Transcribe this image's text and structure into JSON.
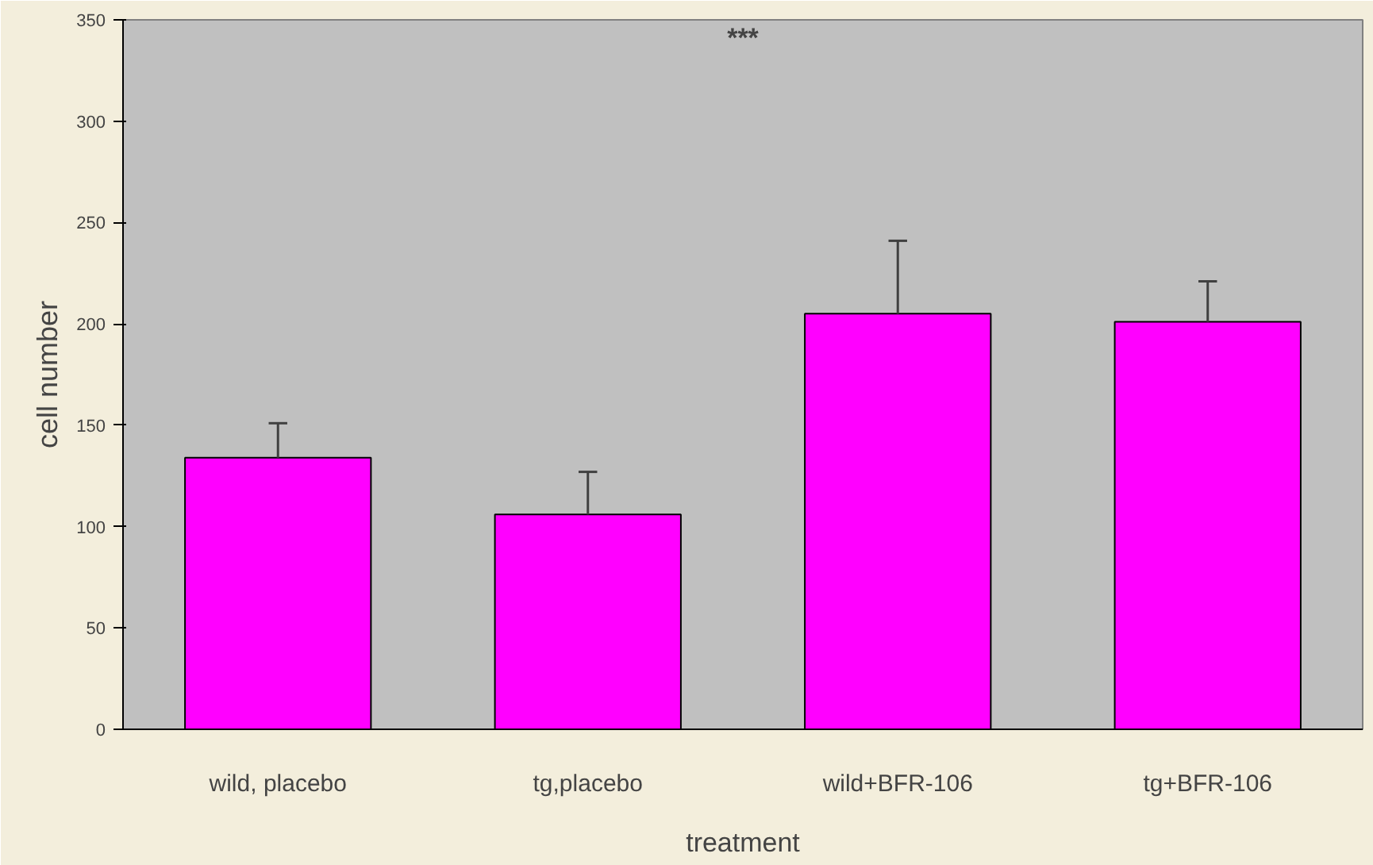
{
  "chart_data": {
    "type": "bar",
    "xlabel": "treatment",
    "ylabel": "cell number",
    "categories": [
      "wild, placebo",
      "tg,placebo",
      "wild+BFR-106",
      "tg+BFR-106"
    ],
    "values": [
      134,
      106,
      205,
      201
    ],
    "errors": [
      [
        134,
        151
      ],
      [
        106,
        127
      ],
      [
        205,
        241
      ],
      [
        201,
        221
      ]
    ],
    "color": "#ff00ff",
    "ylim": [
      0,
      350
    ],
    "yticks": [
      0,
      50,
      100,
      150,
      200,
      250,
      300,
      350
    ],
    "grid": false,
    "annotations": [
      "***"
    ]
  }
}
